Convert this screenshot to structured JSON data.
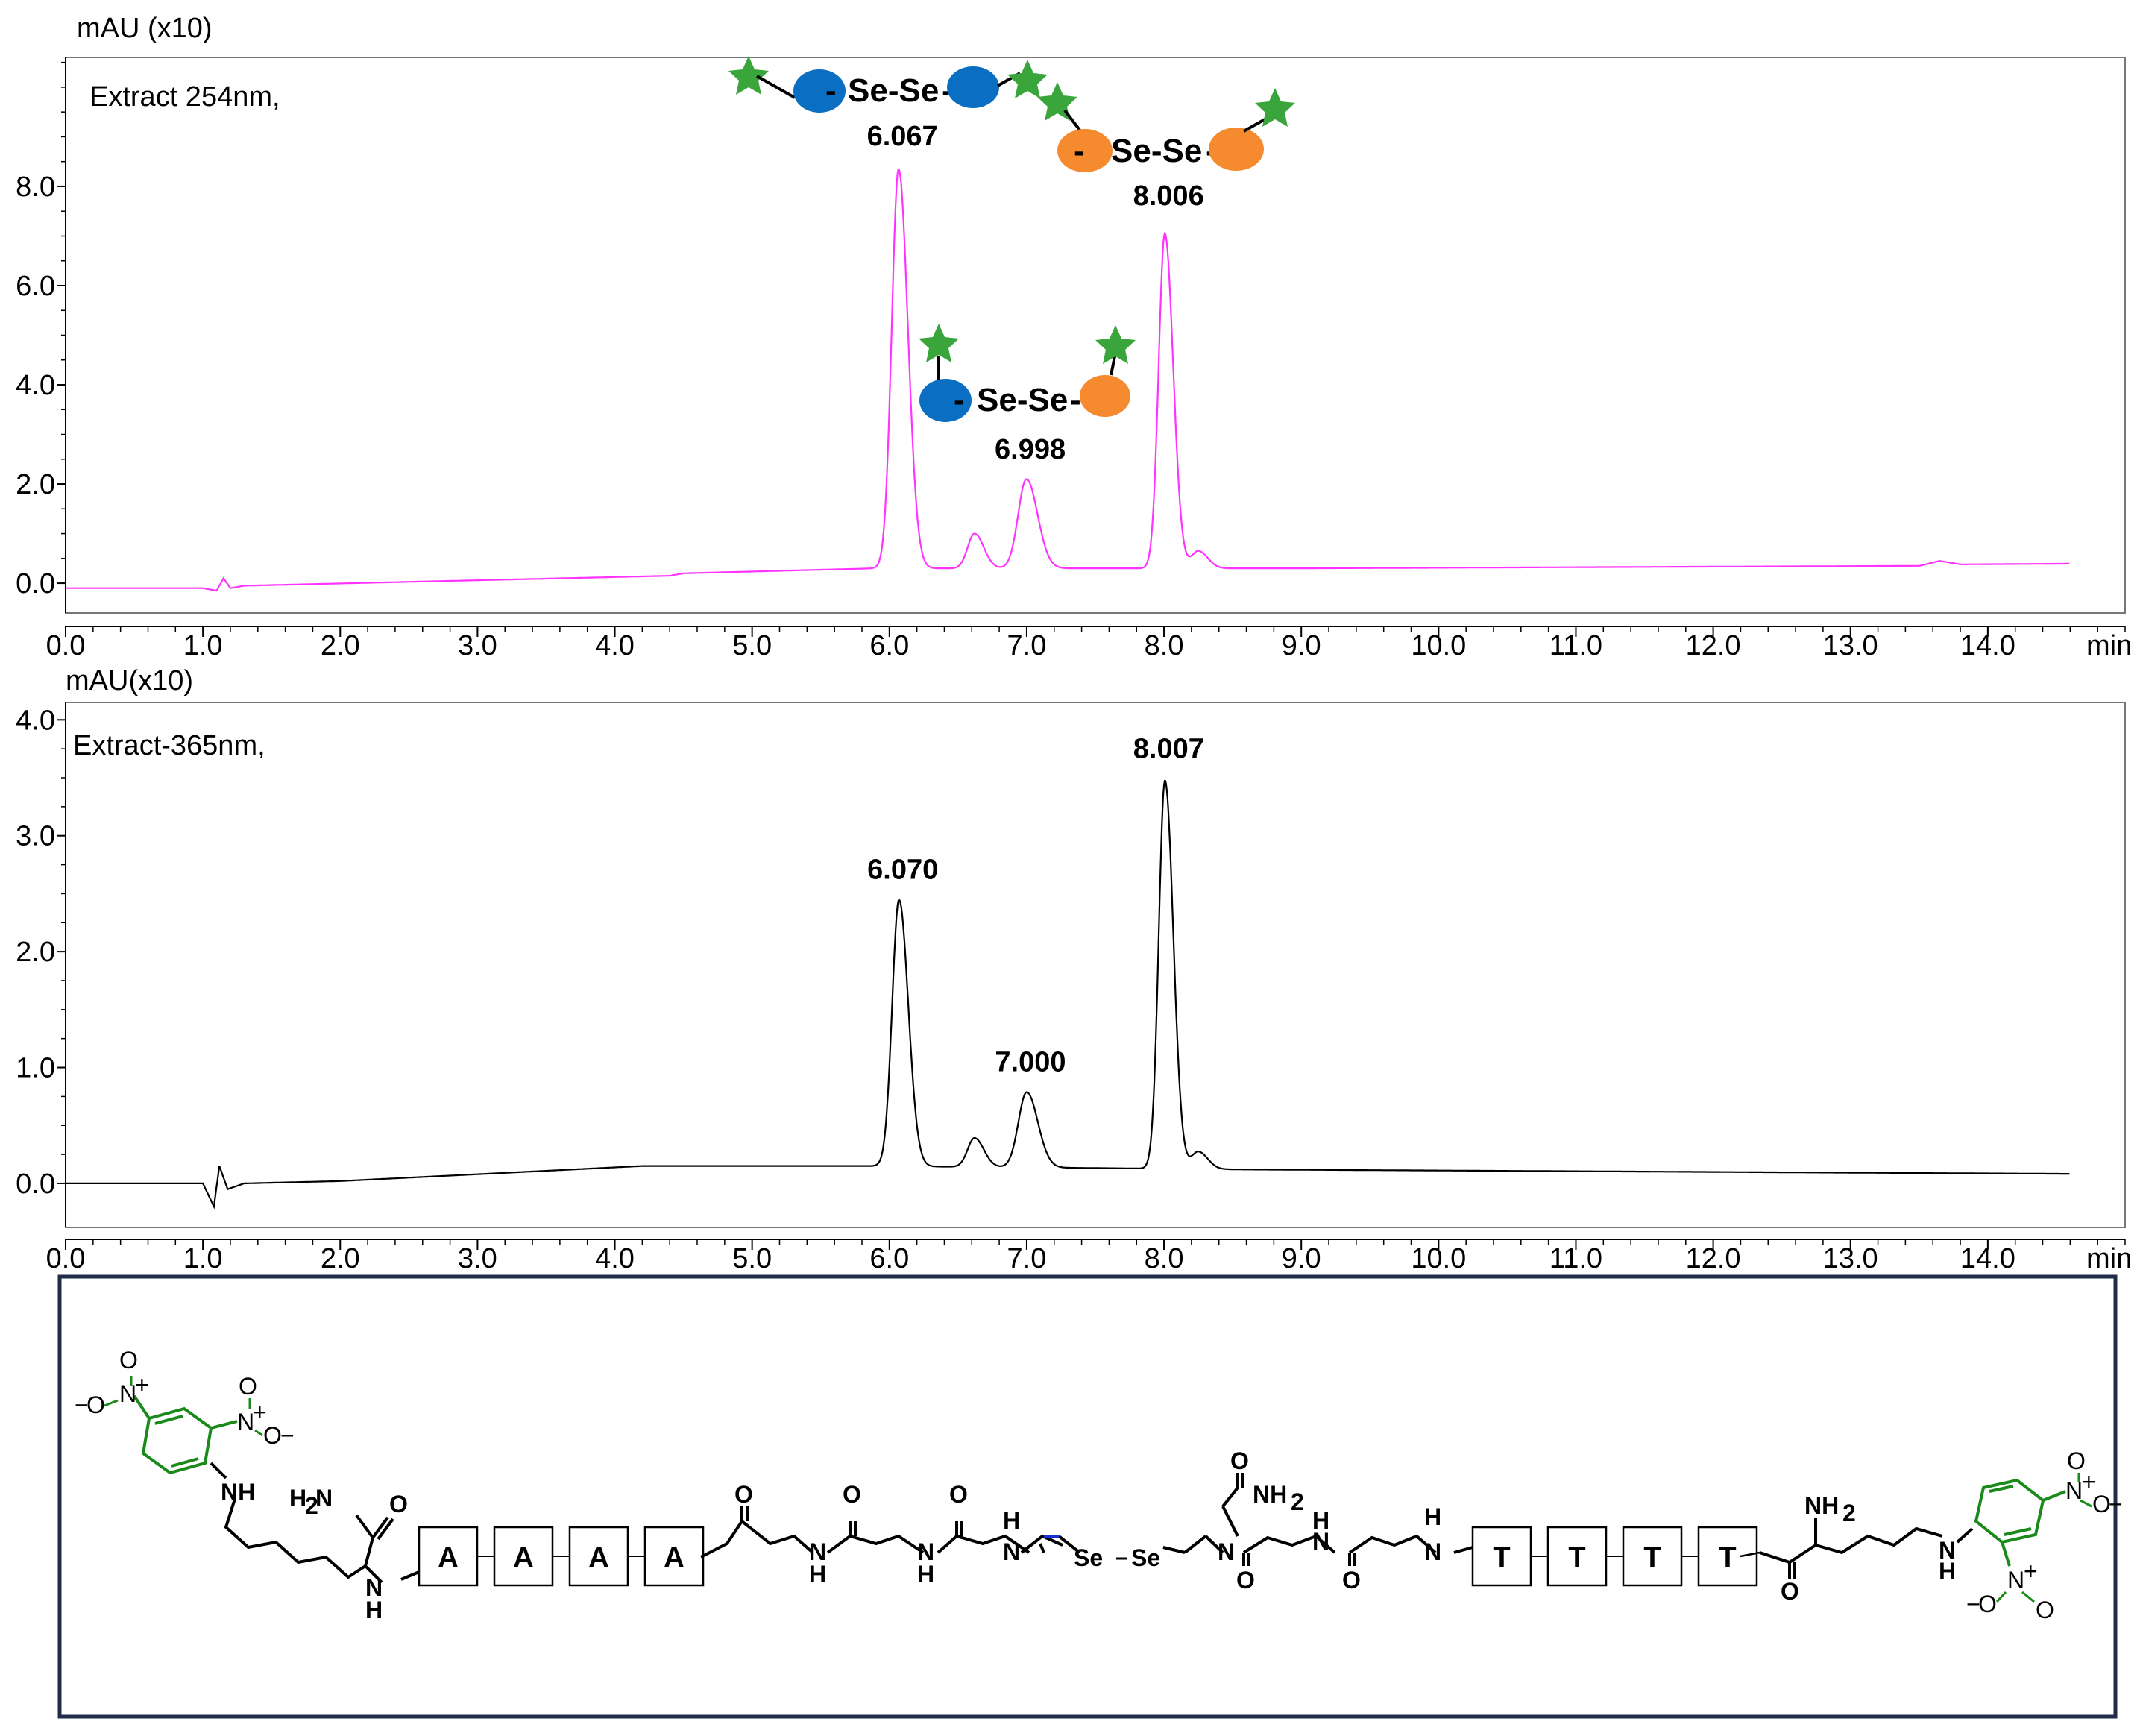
{
  "colors": {
    "trace_254": "#ff33ff",
    "trace_365": "#000000",
    "star": "#3aa53a",
    "blue_bead": "#0a6fc2",
    "orange_bead": "#f58a2e",
    "green_group": "#1a8a1a",
    "selenium": "#e31e24",
    "frame": "#1f2d4a"
  },
  "chart_data": [
    {
      "type": "line",
      "panel_label": "Extract 254nm,",
      "ylabel": "mAU (x10)",
      "xlabel": "min",
      "xlim": [
        0,
        15
      ],
      "ylim": [
        -0.6,
        10.6
      ],
      "xticks": [
        0.0,
        1.0,
        2.0,
        3.0,
        4.0,
        5.0,
        6.0,
        7.0,
        8.0,
        9.0,
        10.0,
        11.0,
        12.0,
        13.0,
        14.0
      ],
      "xtick_labels": [
        "0.0",
        "1.0",
        "2.0",
        "3.0",
        "4.0",
        "5.0",
        "6.0",
        "7.0",
        "8.0",
        "9.0",
        "10.0",
        "11.0",
        "12.0",
        "13.0",
        "14.0"
      ],
      "yticks": [
        0.0,
        2.0,
        4.0,
        6.0,
        8.0
      ],
      "ytick_labels": [
        "0.0",
        "2.0",
        "4.0",
        "6.0",
        "8.0"
      ],
      "baseline": {
        "x": [
          0,
          1.0,
          1.1,
          1.15,
          1.2,
          1.3,
          4.4,
          4.5,
          5.9,
          9.0,
          13.5,
          13.65,
          13.8,
          15
        ],
        "y": [
          -0.1,
          -0.1,
          -0.15,
          0.1,
          -0.1,
          -0.05,
          0.15,
          0.2,
          0.3,
          0.3,
          0.35,
          0.45,
          0.38,
          0.4
        ]
      },
      "peaks": [
        {
          "rt": 6.067,
          "height": 8.05,
          "width": 0.05
        },
        {
          "rt": 6.62,
          "height": 0.7,
          "width": 0.05
        },
        {
          "rt": 6.998,
          "height": 1.8,
          "width": 0.06
        },
        {
          "rt": 8.006,
          "height": 6.75,
          "width": 0.045
        },
        {
          "rt": 8.25,
          "height": 0.35,
          "width": 0.05
        }
      ],
      "annotations": [
        {
          "text": "6.067",
          "x": 6.067
        },
        {
          "text": "6.998",
          "x": 6.998
        },
        {
          "text": "8.006",
          "x": 8.006
        }
      ],
      "dimer_label": "Se-Se"
    },
    {
      "type": "line",
      "panel_label": "Extract-365nm,",
      "ylabel": "mAU(x10)",
      "xlabel": "min",
      "xlim": [
        0,
        15
      ],
      "ylim": [
        -0.38,
        4.15
      ],
      "xticks": [
        0.0,
        1.0,
        2.0,
        3.0,
        4.0,
        5.0,
        6.0,
        7.0,
        8.0,
        9.0,
        10.0,
        11.0,
        12.0,
        13.0,
        14.0
      ],
      "xtick_labels": [
        "0.0",
        "1.0",
        "2.0",
        "3.0",
        "4.0",
        "5.0",
        "6.0",
        "7.0",
        "8.0",
        "9.0",
        "10.0",
        "11.0",
        "12.0",
        "13.0",
        "14.0"
      ],
      "yticks": [
        0.0,
        1.0,
        2.0,
        3.0,
        4.0
      ],
      "ytick_labels": [
        "0.0",
        "1.0",
        "2.0",
        "3.0",
        "4.0"
      ],
      "baseline": {
        "x": [
          0,
          1.0,
          1.08,
          1.12,
          1.18,
          1.3,
          2.0,
          4.2,
          5.9,
          8.6,
          15
        ],
        "y": [
          0.0,
          0.0,
          -0.2,
          0.15,
          -0.05,
          0.0,
          0.02,
          0.15,
          0.15,
          0.12,
          0.08
        ]
      },
      "peaks": [
        {
          "rt": 6.07,
          "height": 2.3,
          "width": 0.05
        },
        {
          "rt": 6.62,
          "height": 0.25,
          "width": 0.05
        },
        {
          "rt": 7.0,
          "height": 0.65,
          "width": 0.06
        },
        {
          "rt": 8.007,
          "height": 3.35,
          "width": 0.045
        },
        {
          "rt": 8.25,
          "height": 0.15,
          "width": 0.05
        }
      ],
      "annotations": [
        {
          "text": "6.070",
          "x": 6.07
        },
        {
          "text": "7.000",
          "x": 7.0
        },
        {
          "text": "8.007",
          "x": 8.007
        }
      ]
    }
  ],
  "structure": {
    "left_box_letters": [
      "A",
      "A",
      "A",
      "A"
    ],
    "right_box_letters": [
      "T",
      "T",
      "T",
      "T"
    ],
    "o_minus": "O",
    "minus": "−",
    "nitro_n": "N",
    "plus": "+",
    "o": "O",
    "nh": "NH",
    "h2n": "H",
    "sub2": "2",
    "n": "N",
    "h": "H",
    "nh2": "NH",
    "se": "Se"
  }
}
